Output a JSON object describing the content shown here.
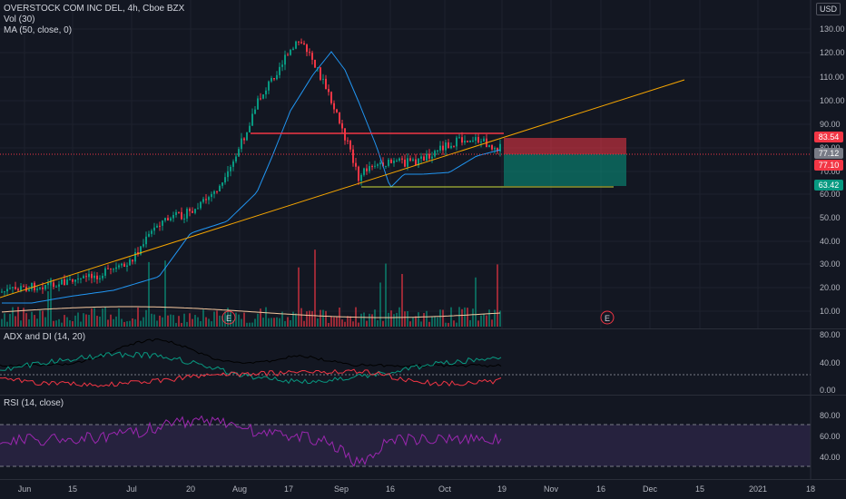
{
  "main": {
    "legend": {
      "symbol": "OVERSTOCK COM INC DEL, 4h, Cboe BZX",
      "volume": "Vol (30)",
      "ma": "MA (50, close, 0)"
    },
    "currency_badge": "USD",
    "price_axis": [
      "130.00",
      "120.00",
      "110.00",
      "100.00",
      "90.00",
      "80.00",
      "70.00",
      "60.00",
      "50.00",
      "40.00",
      "30.00",
      "20.00",
      "10.00"
    ],
    "price_tags": [
      {
        "label": "83.54",
        "color": "#f23645"
      },
      {
        "label": "77.12",
        "color": "#787b86"
      },
      {
        "label": "77.10",
        "color": "#f23645"
      },
      {
        "label": "63.42",
        "color": "#089981"
      }
    ],
    "earnings_markers": [
      "E",
      "E"
    ]
  },
  "adx": {
    "legend": "ADX and DI (14, 20)",
    "axis": [
      "80.00",
      "40.00",
      "0.00"
    ]
  },
  "rsi": {
    "legend": "RSI (14, close)",
    "axis": [
      "80.00",
      "60.00",
      "40.00"
    ]
  },
  "time_axis": [
    "Jun",
    "15",
    "Jul",
    "20",
    "Aug",
    "17",
    "Sep",
    "16",
    "Oct",
    "19",
    "Nov",
    "16",
    "Dec",
    "15",
    "2021",
    "18"
  ],
  "colors": {
    "background": "#131722",
    "up": "#089981",
    "down": "#f23645",
    "ma": "#2196f3",
    "trendline": "#f7a600",
    "resistance": "#f23645",
    "support": "#cddc39",
    "rsi": "#9c27b0"
  }
}
